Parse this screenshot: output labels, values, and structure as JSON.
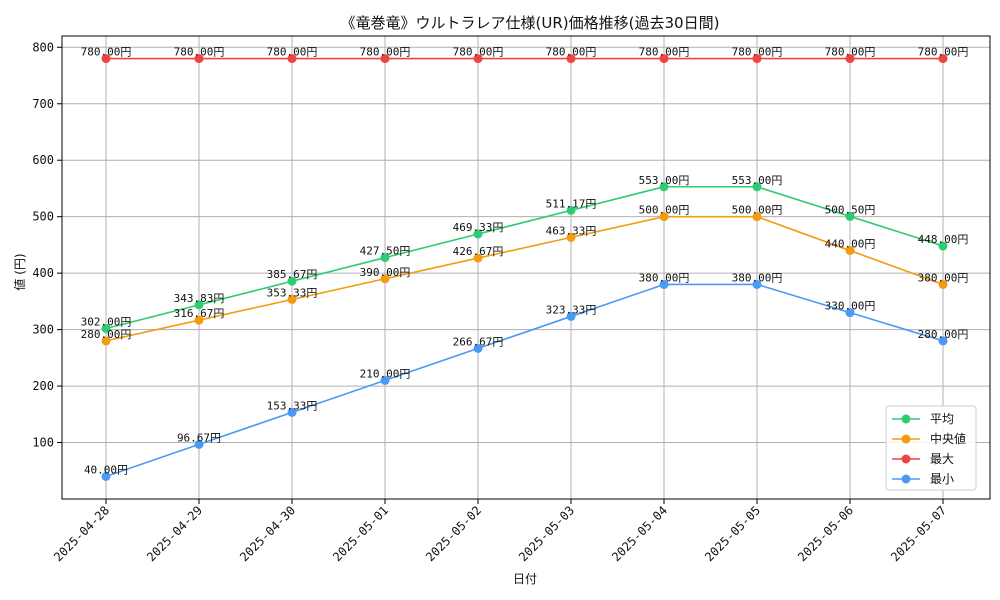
{
  "chart_data": {
    "type": "line",
    "title": "《竜巻竜》ウルトラレア仕様(UR)価格推移(過去30日間)",
    "xlabel": "日付",
    "ylabel": "値 (円)",
    "categories": [
      "2025-04-28",
      "2025-04-29",
      "2025-04-30",
      "2025-05-01",
      "2025-05-02",
      "2025-05-03",
      "2025-05-04",
      "2025-05-05",
      "2025-05-06",
      "2025-05-07"
    ],
    "ylim": [
      0,
      820
    ],
    "yticks": [
      100,
      200,
      300,
      400,
      500,
      600,
      700,
      800
    ],
    "grid": true,
    "legend_position": "bottom-right",
    "series": [
      {
        "name": "平均",
        "color": "#2ecc71",
        "values": [
          302.0,
          343.83,
          385.67,
          427.5,
          469.33,
          511.17,
          553.0,
          553.0,
          500.5,
          448.0
        ],
        "labels": [
          "302.00円",
          "343.83円",
          "385.67円",
          "427.50円",
          "469.33円",
          "511.17円",
          "553.00円",
          "553.00円",
          "500.50円",
          "448.00円"
        ]
      },
      {
        "name": "中央値",
        "color": "#f39c12",
        "values": [
          280.0,
          316.67,
          353.33,
          390.0,
          426.67,
          463.33,
          500.0,
          500.0,
          440.0,
          380.0
        ],
        "labels": [
          "280.00円",
          "316.67円",
          "353.33円",
          "390.00円",
          "426.67円",
          "463.33円",
          "500.00円",
          "500.00円",
          "440.00円",
          "380.00円"
        ]
      },
      {
        "name": "最大",
        "color": "#ef4444",
        "values": [
          780.0,
          780.0,
          780.0,
          780.0,
          780.0,
          780.0,
          780.0,
          780.0,
          780.0,
          780.0
        ],
        "labels": [
          "780.00円",
          "780.00円",
          "780.00円",
          "780.00円",
          "780.00円",
          "780.00円",
          "780.00円",
          "780.00円",
          "780.00円",
          "780.00円"
        ]
      },
      {
        "name": "最小",
        "color": "#4a9af5",
        "values": [
          40.0,
          96.67,
          153.33,
          210.0,
          266.67,
          323.33,
          380.0,
          380.0,
          330.0,
          280.0
        ],
        "labels": [
          "40.00円",
          "96.67円",
          "153.33円",
          "210.00円",
          "266.67円",
          "323.33円",
          "380.00円",
          "380.00円",
          "330.00円",
          "280.00円"
        ]
      }
    ]
  }
}
